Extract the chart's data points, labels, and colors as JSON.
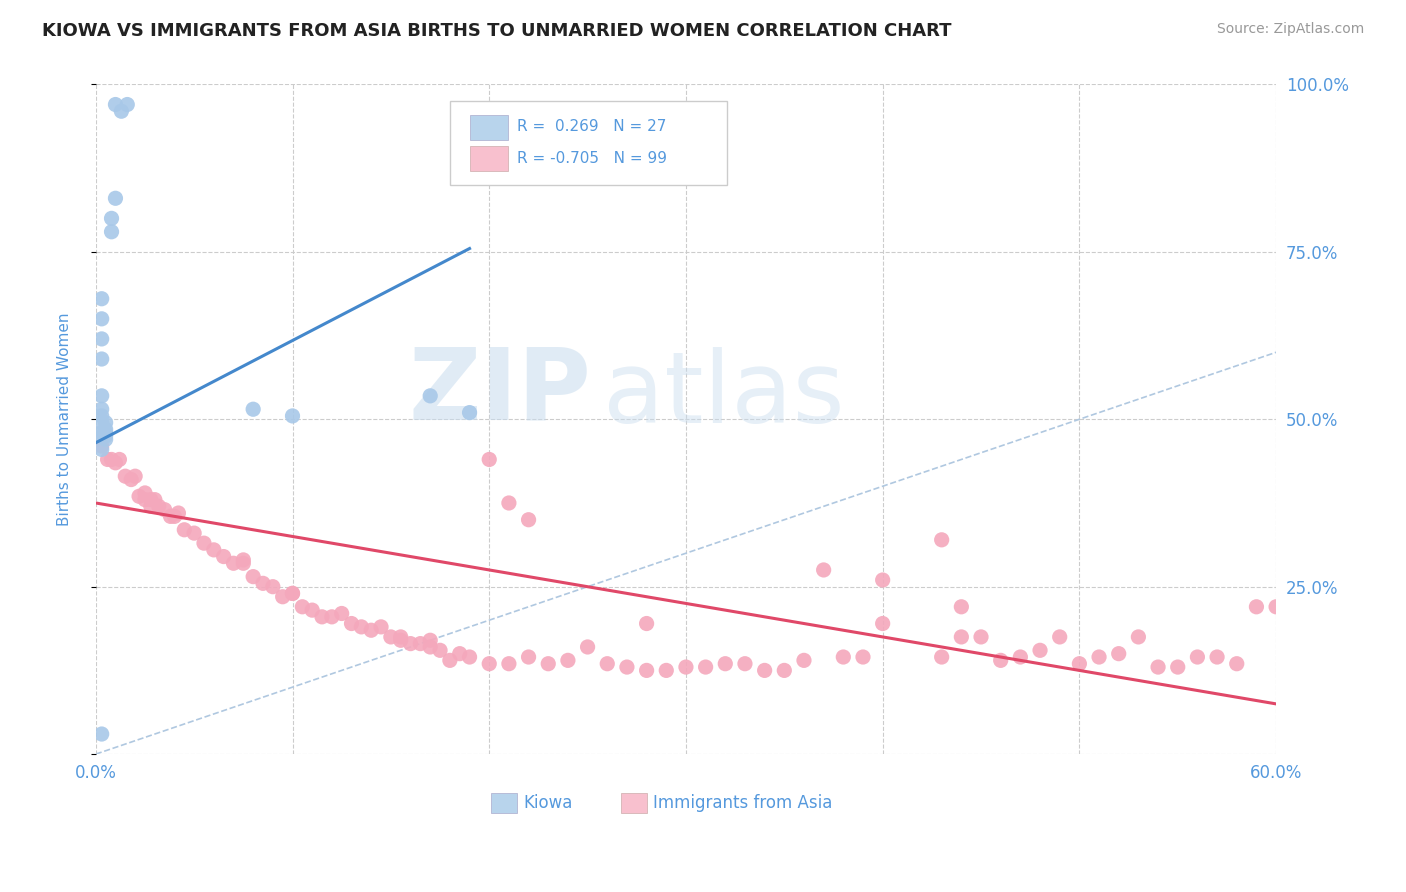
{
  "title": "KIOWA VS IMMIGRANTS FROM ASIA BIRTHS TO UNMARRIED WOMEN CORRELATION CHART",
  "source": "Source: ZipAtlas.com",
  "ylabel": "Births to Unmarried Women",
  "xmin": 0.0,
  "xmax": 0.6,
  "ymin": 0.0,
  "ymax": 1.0,
  "kiowa_R": 0.269,
  "kiowa_N": 27,
  "asia_R": -0.705,
  "asia_N": 99,
  "blue_scatter_color": "#a8c8e8",
  "pink_scatter_color": "#f4a8bc",
  "blue_line_color": "#4488cc",
  "pink_line_color": "#e04868",
  "blue_legend_color": "#b8d4ec",
  "pink_legend_color": "#f8c0ce",
  "text_color": "#5599dd",
  "title_color": "#222222",
  "grid_color": "#cccccc",
  "watermark_zip": "ZIP",
  "watermark_atlas": "atlas",
  "kiowa_x": [
    0.01,
    0.013,
    0.016,
    0.01,
    0.008,
    0.008,
    0.003,
    0.003,
    0.003,
    0.003,
    0.003,
    0.003,
    0.003,
    0.003,
    0.005,
    0.005,
    0.005,
    0.005,
    0.005,
    0.003,
    0.08,
    0.1,
    0.17,
    0.19,
    0.003,
    0.003,
    0.003
  ],
  "kiowa_y": [
    0.97,
    0.96,
    0.97,
    0.83,
    0.8,
    0.78,
    0.68,
    0.65,
    0.62,
    0.59,
    0.535,
    0.515,
    0.505,
    0.495,
    0.495,
    0.485,
    0.48,
    0.475,
    0.47,
    0.03,
    0.515,
    0.505,
    0.535,
    0.51,
    0.48,
    0.475,
    0.455
  ],
  "asia_x": [
    0.003,
    0.006,
    0.008,
    0.01,
    0.012,
    0.015,
    0.018,
    0.02,
    0.022,
    0.025,
    0.025,
    0.028,
    0.028,
    0.03,
    0.032,
    0.035,
    0.038,
    0.04,
    0.042,
    0.045,
    0.05,
    0.055,
    0.06,
    0.065,
    0.07,
    0.075,
    0.075,
    0.08,
    0.085,
    0.09,
    0.095,
    0.1,
    0.105,
    0.1,
    0.11,
    0.115,
    0.12,
    0.125,
    0.13,
    0.135,
    0.14,
    0.145,
    0.15,
    0.155,
    0.155,
    0.16,
    0.165,
    0.17,
    0.17,
    0.175,
    0.18,
    0.185,
    0.19,
    0.2,
    0.2,
    0.21,
    0.21,
    0.22,
    0.22,
    0.23,
    0.24,
    0.25,
    0.26,
    0.27,
    0.28,
    0.28,
    0.29,
    0.3,
    0.31,
    0.32,
    0.33,
    0.34,
    0.35,
    0.36,
    0.37,
    0.38,
    0.39,
    0.4,
    0.4,
    0.43,
    0.43,
    0.44,
    0.44,
    0.45,
    0.46,
    0.47,
    0.48,
    0.49,
    0.5,
    0.51,
    0.52,
    0.53,
    0.54,
    0.55,
    0.56,
    0.57,
    0.58,
    0.59,
    0.6
  ],
  "asia_y": [
    0.46,
    0.44,
    0.44,
    0.435,
    0.44,
    0.415,
    0.41,
    0.415,
    0.385,
    0.39,
    0.38,
    0.38,
    0.37,
    0.38,
    0.37,
    0.365,
    0.355,
    0.355,
    0.36,
    0.335,
    0.33,
    0.315,
    0.305,
    0.295,
    0.285,
    0.285,
    0.29,
    0.265,
    0.255,
    0.25,
    0.235,
    0.24,
    0.22,
    0.24,
    0.215,
    0.205,
    0.205,
    0.21,
    0.195,
    0.19,
    0.185,
    0.19,
    0.175,
    0.175,
    0.17,
    0.165,
    0.165,
    0.17,
    0.16,
    0.155,
    0.14,
    0.15,
    0.145,
    0.44,
    0.135,
    0.375,
    0.135,
    0.35,
    0.145,
    0.135,
    0.14,
    0.16,
    0.135,
    0.13,
    0.125,
    0.195,
    0.125,
    0.13,
    0.13,
    0.135,
    0.135,
    0.125,
    0.125,
    0.14,
    0.275,
    0.145,
    0.145,
    0.26,
    0.195,
    0.32,
    0.145,
    0.22,
    0.175,
    0.175,
    0.14,
    0.145,
    0.155,
    0.175,
    0.135,
    0.145,
    0.15,
    0.175,
    0.13,
    0.13,
    0.145,
    0.145,
    0.135,
    0.22,
    0.22
  ],
  "blue_trend_x": [
    0.0,
    0.19
  ],
  "blue_trend_y": [
    0.465,
    0.755
  ],
  "pink_trend_x": [
    0.0,
    0.6
  ],
  "pink_trend_y": [
    0.375,
    0.075
  ]
}
